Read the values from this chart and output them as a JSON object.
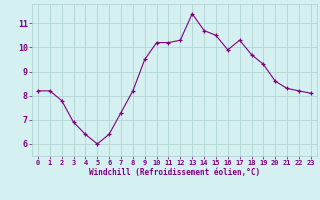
{
  "x": [
    0,
    1,
    2,
    3,
    4,
    5,
    6,
    7,
    8,
    9,
    10,
    11,
    12,
    13,
    14,
    15,
    16,
    17,
    18,
    19,
    20,
    21,
    22,
    23
  ],
  "y": [
    8.2,
    8.2,
    7.8,
    6.9,
    6.4,
    6.0,
    6.4,
    7.3,
    8.2,
    9.5,
    10.2,
    10.2,
    10.3,
    11.4,
    10.7,
    10.5,
    9.9,
    10.3,
    9.7,
    9.3,
    8.6,
    8.3,
    8.2,
    8.1
  ],
  "line_color": "#800080",
  "marker": "+",
  "bg_color": "#d4f0f0",
  "grid_color": "#aacece",
  "xlabel": "Windchill (Refroidissement éolien,°C)",
  "xlabel_color": "#800080",
  "tick_label_color": "#800080",
  "ylim": [
    5.5,
    11.8
  ],
  "yticks": [
    6,
    7,
    8,
    9,
    10,
    11
  ],
  "xticks": [
    0,
    1,
    2,
    3,
    4,
    5,
    6,
    7,
    8,
    9,
    10,
    11,
    12,
    13,
    14,
    15,
    16,
    17,
    18,
    19,
    20,
    21,
    22,
    23
  ]
}
